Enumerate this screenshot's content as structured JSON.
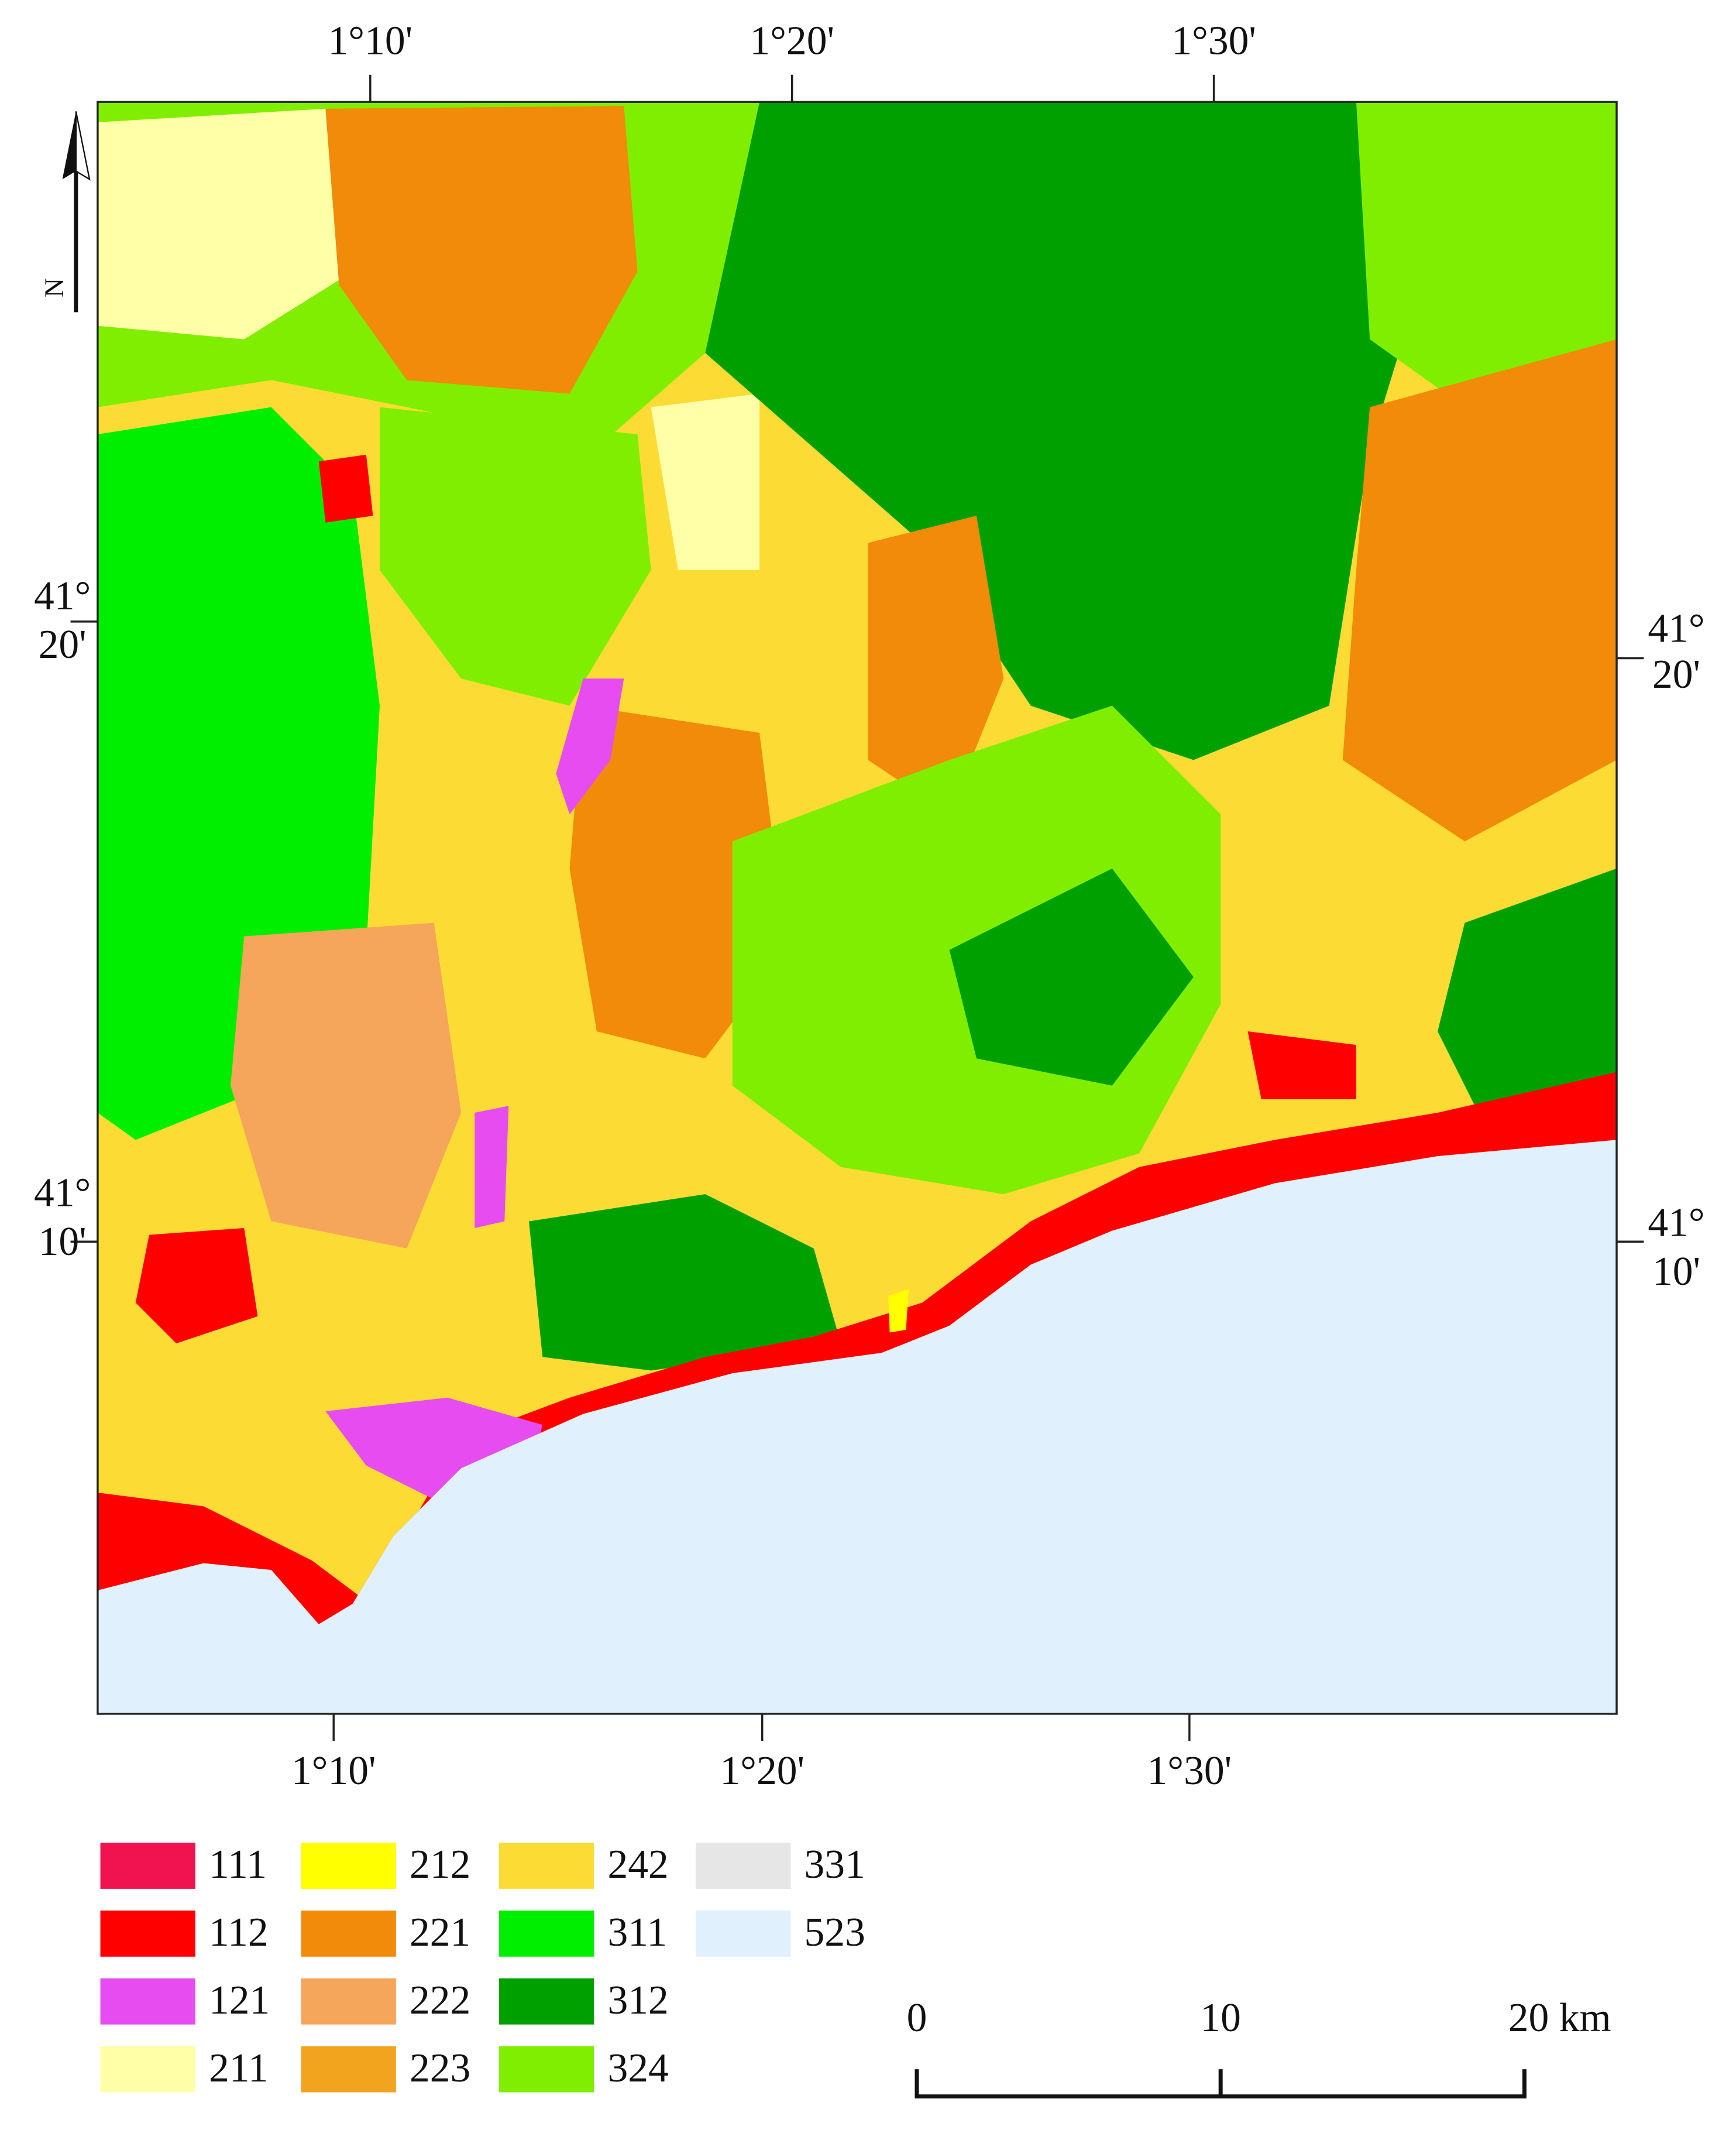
{
  "map": {
    "top_ticks": [
      "1°10'",
      "1°20'",
      "1°30'"
    ],
    "bottom_ticks": [
      "1°10'",
      "1°20'",
      "1°30'"
    ],
    "left_ticks": [
      {
        "degrees": "41°",
        "minutes": "20'"
      },
      {
        "degrees": "41°",
        "minutes": "10'"
      }
    ],
    "right_ticks": [
      {
        "degrees": "41°",
        "minutes": "20'"
      },
      {
        "degrees": "41°",
        "minutes": "10'"
      }
    ],
    "north": "N",
    "legend": [
      {
        "code": "111",
        "color": "#f0134f"
      },
      {
        "code": "112",
        "color": "#ff0000"
      },
      {
        "code": "121",
        "color": "#e64cf0"
      },
      {
        "code": "211",
        "color": "#ffffa8"
      },
      {
        "code": "212",
        "color": "#ffff00"
      },
      {
        "code": "221",
        "color": "#f28a0a"
      },
      {
        "code": "222",
        "color": "#f5a65a"
      },
      {
        "code": "223",
        "color": "#f2a41e"
      },
      {
        "code": "242",
        "color": "#fcdc34"
      },
      {
        "code": "311",
        "color": "#00ee00"
      },
      {
        "code": "312",
        "color": "#00a000"
      },
      {
        "code": "324",
        "color": "#80ee00"
      },
      {
        "code": "331",
        "color": "#e6e6e6"
      },
      {
        "code": "523",
        "color": "#e0f0fc"
      }
    ],
    "scale_bar": [
      "0",
      "10",
      "20 km"
    ]
  }
}
